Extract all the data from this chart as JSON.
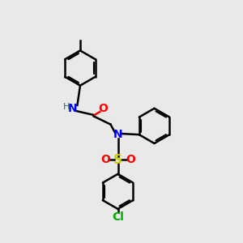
{
  "background_color": "#e9e9e9",
  "lw": 1.8,
  "ring_r": 0.72,
  "atom_colors": {
    "N": "#0000ff",
    "H": "#336666",
    "O": "#ff0000",
    "S": "#cccc00",
    "Cl": "#00aa00",
    "C": "#000000"
  },
  "font_size_atom": 10,
  "font_size_small": 8
}
